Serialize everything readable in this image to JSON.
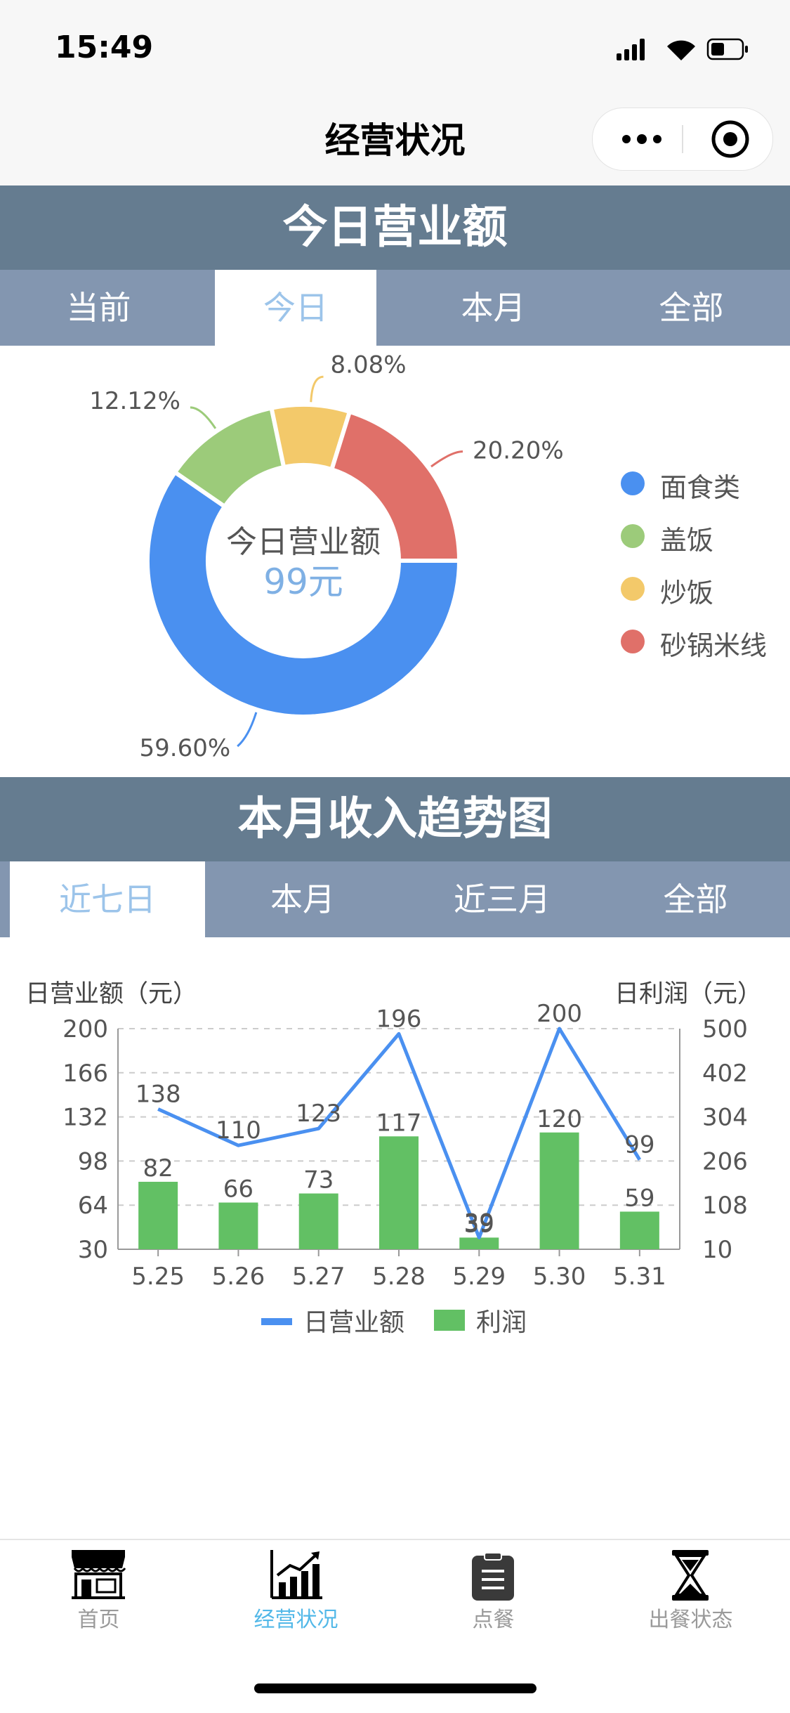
{
  "status_bar": {
    "time": "15:49"
  },
  "nav": {
    "title": "经营状况"
  },
  "revenue_section": {
    "title": "今日营业额",
    "tabs": [
      {
        "label": "当前",
        "active": false
      },
      {
        "label": "今日",
        "active": true
      },
      {
        "label": "本月",
        "active": false
      },
      {
        "label": "全部",
        "active": false
      }
    ],
    "center_label": "今日营业额",
    "center_value": "99元",
    "legend": [
      {
        "label": "面食类",
        "color": "#4a90f0"
      },
      {
        "label": "盖饭",
        "color": "#9ccb7a"
      },
      {
        "label": "炒饭",
        "color": "#f3c96a"
      },
      {
        "label": "砂锅米线",
        "color": "#e07069"
      }
    ]
  },
  "trend_section": {
    "title": "本月收入趋势图",
    "tabs": [
      {
        "label": "近七日",
        "active": true
      },
      {
        "label": "本月",
        "active": false
      },
      {
        "label": "近三月",
        "active": false
      },
      {
        "label": "全部",
        "active": false
      }
    ],
    "legend": [
      {
        "label": "日营业额",
        "color": "#4a90f0"
      },
      {
        "label": "利润",
        "color": "#62c064"
      }
    ]
  },
  "chart_data": [
    {
      "type": "pie",
      "title": "今日营业额",
      "categories": [
        "面食类",
        "盖饭",
        "炒饭",
        "砂锅米线"
      ],
      "values": [
        59.6,
        12.12,
        8.08,
        20.2
      ],
      "value_labels": [
        "59.60%",
        "12.12%",
        "8.08%",
        "20.20%"
      ],
      "colors": [
        "#4a90f0",
        "#9ccb7a",
        "#f3c96a",
        "#e07069"
      ],
      "donut": true,
      "center_text": [
        "今日营业额",
        "99元"
      ]
    },
    {
      "type": "bar",
      "title": "本月收入趋势图",
      "categories": [
        "5.25",
        "5.26",
        "5.27",
        "5.28",
        "5.29",
        "5.30",
        "5.31"
      ],
      "ylabel": "日营业额（元）",
      "y2label": "日利润（元）",
      "ylim": [
        30,
        200
      ],
      "yticks": [
        "200",
        "166",
        "132",
        "98",
        "64",
        "30"
      ],
      "y2lim": [
        10,
        500
      ],
      "y2ticks": [
        "500",
        "402",
        "304",
        "206",
        "108",
        "10"
      ],
      "grid": true,
      "series": [
        {
          "name": "日营业额",
          "type": "line",
          "axis": "left",
          "color": "#4a90f0",
          "values": [
            138,
            110,
            123,
            196,
            39,
            200,
            99
          ]
        },
        {
          "name": "利润",
          "type": "bar",
          "axis": "left",
          "color": "#62c064",
          "values": [
            82,
            66,
            73,
            117,
            39,
            120,
            59
          ]
        }
      ]
    }
  ],
  "tab_bar": {
    "items": [
      {
        "label": "首页",
        "icon": "store-icon",
        "active": false
      },
      {
        "label": "经营状况",
        "icon": "chart-icon",
        "active": true
      },
      {
        "label": "点餐",
        "icon": "clipboard-icon",
        "active": false
      },
      {
        "label": "出餐状态",
        "icon": "hourglass-icon",
        "active": false
      }
    ]
  }
}
